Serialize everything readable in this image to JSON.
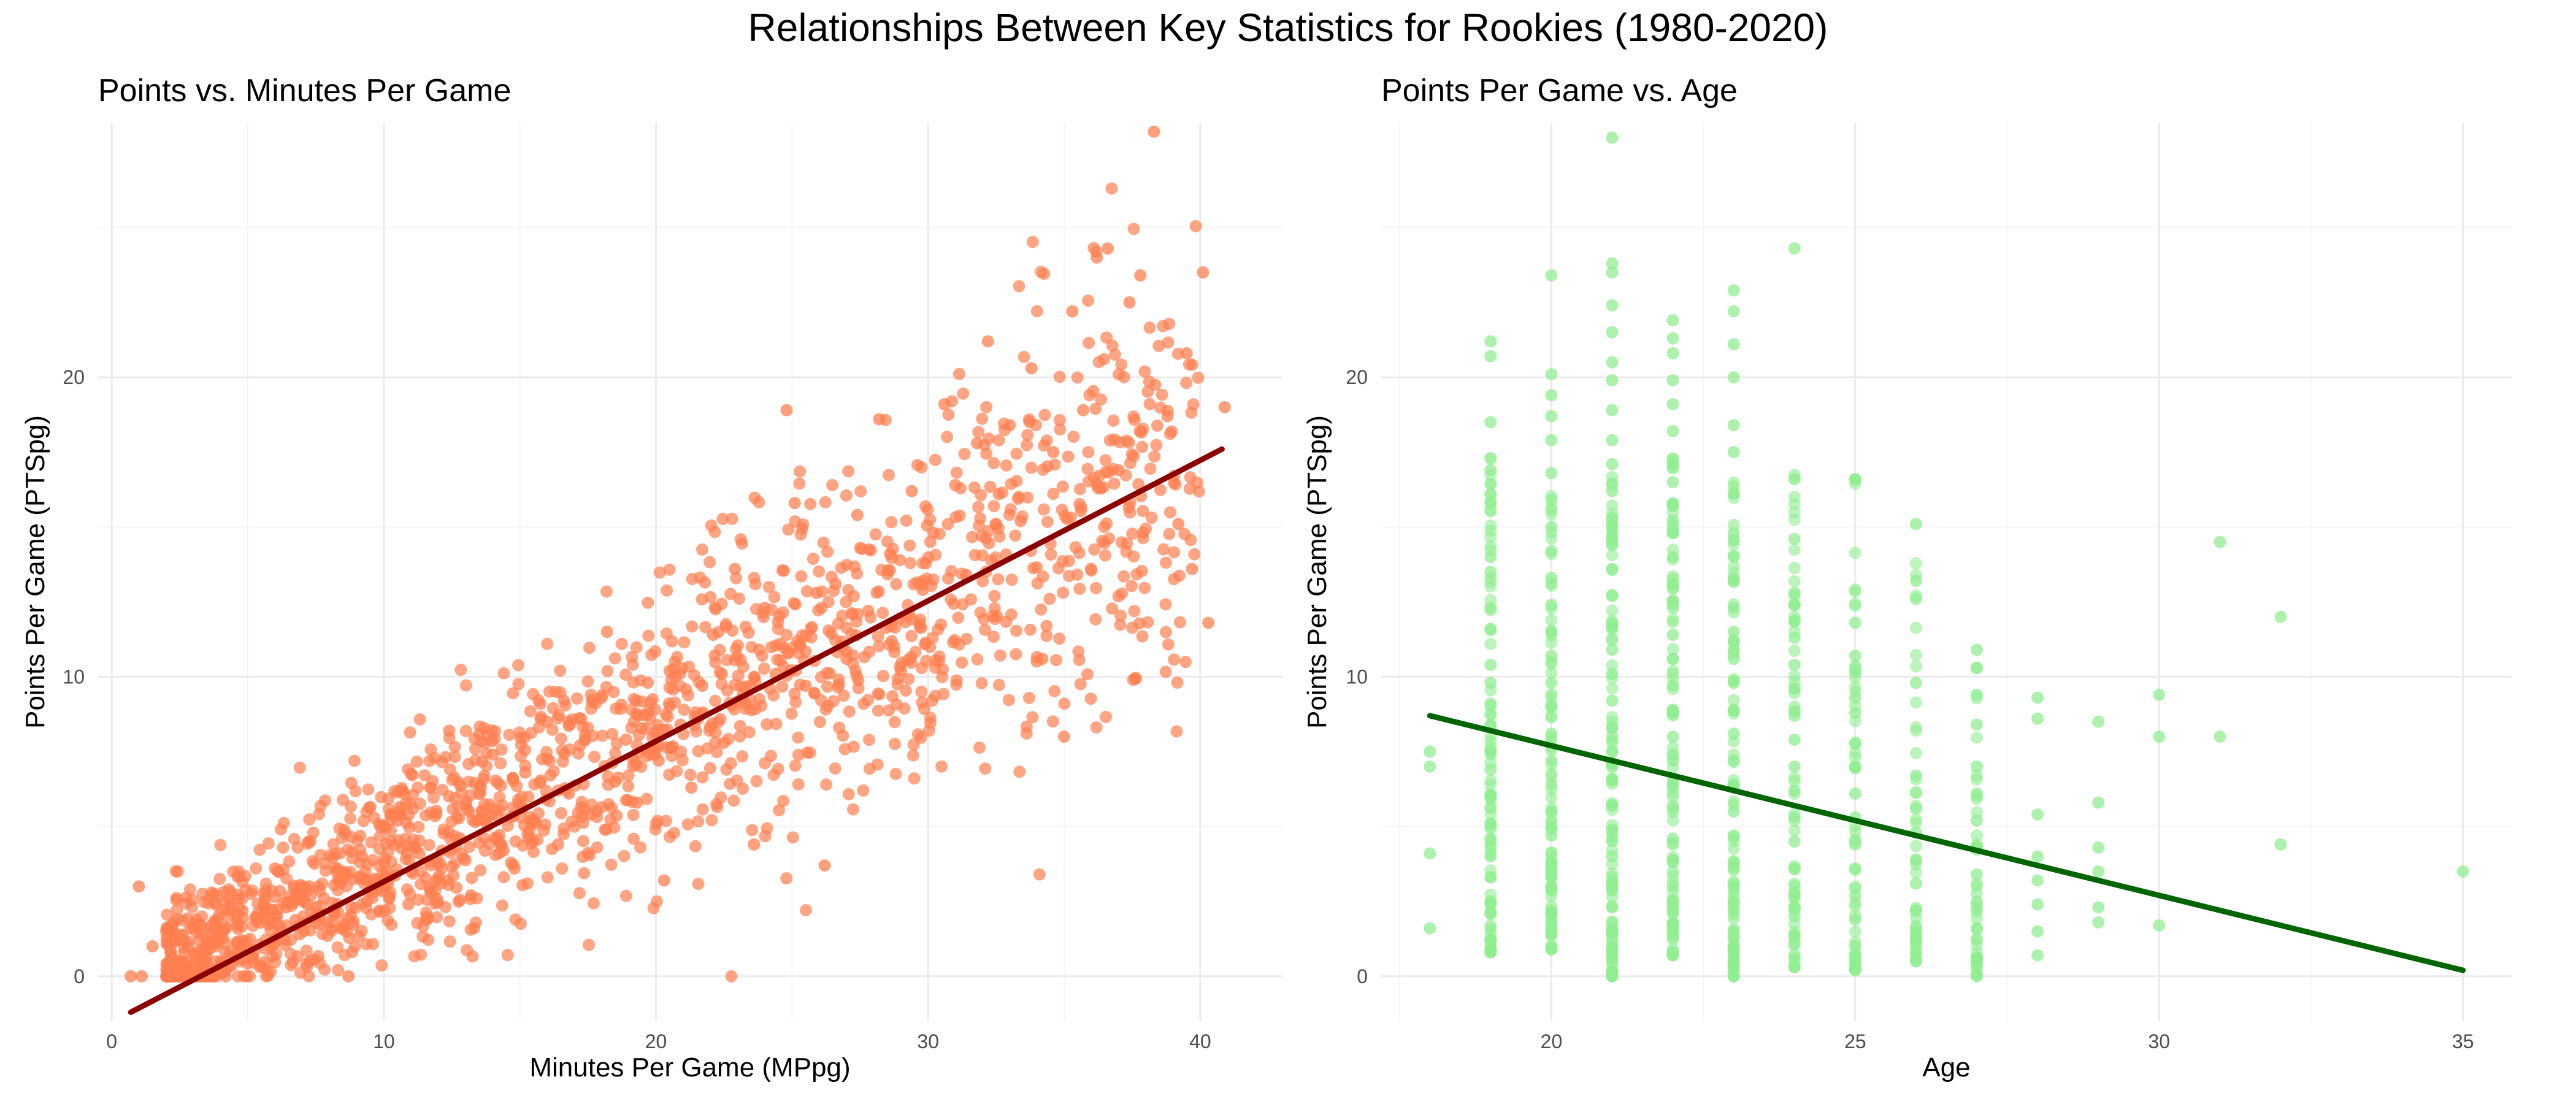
{
  "figure": {
    "title": "Relationships Between Key Statistics for Rookies (1980-2020)"
  },
  "colors": {
    "panel1_points": "#ff7f50",
    "panel1_line": "#8b0000",
    "panel2_points": "#90ee90",
    "panel2_line": "#006400",
    "grid_major": "#ebebeb",
    "grid_minor": "#f5f5f5"
  },
  "chart_data": [
    {
      "type": "scatter",
      "title": "Points vs. Minutes Per Game",
      "xlabel": "Minutes Per Game (MPpg)",
      "ylabel": "Points Per Game (PTSpg)",
      "xlim": [
        -0.5,
        43
      ],
      "ylim": [
        -1.5,
        28.5
      ],
      "x_ticks": [
        0,
        10,
        20,
        30,
        40
      ],
      "y_ticks": [
        0,
        10,
        20
      ],
      "grid": true,
      "legend": "none",
      "trend_line": {
        "x": [
          0.7,
          40.8
        ],
        "y": [
          -1.2,
          17.6
        ]
      },
      "sample_points": [
        [
          0.7,
          0
        ],
        [
          1,
          3
        ],
        [
          1.1,
          0
        ],
        [
          1.5,
          1
        ],
        [
          2,
          1.5
        ],
        [
          2.4,
          1.9
        ],
        [
          2.8,
          0.5
        ],
        [
          3.2,
          1.2
        ],
        [
          3.8,
          1.8
        ],
        [
          4.3,
          2.9
        ],
        [
          4.8,
          2.2
        ],
        [
          5.2,
          0.6
        ],
        [
          5.7,
          1.9
        ],
        [
          6.0,
          3.6
        ],
        [
          6.4,
          2.3
        ],
        [
          6.9,
          1.4
        ],
        [
          7.3,
          4.5
        ],
        [
          7.8,
          2.6
        ],
        [
          8.3,
          3.2
        ],
        [
          8.7,
          0
        ],
        [
          9.2,
          4.0
        ],
        [
          9.6,
          2.8
        ],
        [
          10.1,
          3.5
        ],
        [
          10.5,
          5.2
        ],
        [
          10.9,
          2.4
        ],
        [
          11.3,
          4.1
        ],
        [
          11.7,
          6.3
        ],
        [
          12.1,
          3.1
        ],
        [
          12.4,
          8.2
        ],
        [
          12.8,
          4.6
        ],
        [
          13.2,
          2.7
        ],
        [
          13.6,
          5.5
        ],
        [
          14.0,
          7.4
        ],
        [
          14.4,
          4.2
        ],
        [
          14.8,
          3.6
        ],
        [
          15.2,
          6.8
        ],
        [
          15.6,
          5.1
        ],
        [
          16.0,
          8.5
        ],
        [
          16.4,
          4.4
        ],
        [
          16.8,
          6.1
        ],
        [
          17.2,
          7.7
        ],
        [
          17.6,
          5.4
        ],
        [
          18.0,
          9.3
        ],
        [
          18.2,
          11.5
        ],
        [
          18.5,
          6.5
        ],
        [
          18.9,
          7.9
        ],
        [
          19.3,
          5.8
        ],
        [
          19.7,
          9.8
        ],
        [
          20.1,
          7.2
        ],
        [
          20.3,
          3.2
        ],
        [
          20.5,
          10.2
        ],
        [
          20.9,
          8.4
        ],
        [
          21.3,
          6.3
        ],
        [
          21.7,
          9.7
        ],
        [
          22.1,
          11.4
        ],
        [
          22.5,
          7.8
        ],
        [
          22.9,
          13.6
        ],
        [
          23.3,
          9.1
        ],
        [
          23.6,
          4.4
        ],
        [
          24.0,
          12.3
        ],
        [
          24.4,
          10.1
        ],
        [
          24.8,
          18.9
        ],
        [
          25.1,
          15.8
        ],
        [
          25.5,
          9.7
        ],
        [
          25.9,
          12.8
        ],
        [
          26.2,
          3.7
        ],
        [
          26.6,
          13.1
        ],
        [
          27.0,
          10.6
        ],
        [
          27.4,
          15.4
        ],
        [
          27.8,
          12.2
        ],
        [
          28.2,
          18.6
        ],
        [
          28.6,
          14.1
        ],
        [
          29.0,
          10.2
        ],
        [
          29.4,
          16.2
        ],
        [
          29.8,
          12.9
        ],
        [
          30.2,
          14.8
        ],
        [
          30.6,
          19.1
        ],
        [
          31.0,
          16.4
        ],
        [
          31.4,
          13.4
        ],
        [
          31.8,
          17.8
        ],
        [
          32.2,
          21.2
        ],
        [
          32.6,
          16.1
        ],
        [
          33.0,
          18.4
        ],
        [
          33.4,
          15.2
        ],
        [
          33.8,
          20.3
        ],
        [
          34.2,
          10.6
        ],
        [
          34.6,
          17.5
        ],
        [
          35.0,
          8.0
        ],
        [
          35.3,
          22.2
        ],
        [
          35.7,
          18.9
        ],
        [
          36.2,
          24.0
        ],
        [
          36.6,
          24.3
        ],
        [
          37.0,
          16.9
        ],
        [
          37.4,
          22.5
        ],
        [
          37.8,
          23.4
        ],
        [
          38.3,
          28.2
        ],
        [
          38.8,
          18.7
        ],
        [
          39.2,
          15.1
        ],
        [
          39.5,
          20.8
        ],
        [
          39.7,
          13.6
        ],
        [
          40.1,
          23.5
        ],
        [
          40.3,
          11.8
        ],
        [
          40.9,
          19.0
        ]
      ]
    },
    {
      "type": "scatter",
      "title": "Points Per Game vs. Age",
      "xlabel": "Age",
      "ylabel": "Points Per Game (PTSpg)",
      "xlim": [
        17.2,
        35.8
      ],
      "ylim": [
        -1.5,
        28.5
      ],
      "x_ticks": [
        20,
        25,
        30,
        35
      ],
      "y_ticks": [
        0,
        10,
        20
      ],
      "grid": true,
      "legend": "none",
      "trend_line": {
        "x": [
          18,
          35
        ],
        "y": [
          8.7,
          0.2
        ]
      },
      "age_columns": [
        {
          "age": 18,
          "values": [
            1.6,
            4.1,
            7.0,
            7.5
          ]
        },
        {
          "age": 19,
          "values": [
            0.8,
            1.2,
            2.1,
            2.5,
            3.3,
            4.0,
            4.6,
            5.1,
            6.0,
            6.9,
            7.5,
            8.4,
            9.1,
            9.8,
            10.4,
            11.6,
            12.3,
            13.5,
            14.0,
            15.8,
            16.9,
            18.5,
            20.7,
            21.2
          ]
        },
        {
          "age": 20,
          "values": [
            0.9,
            1.4,
            2.2,
            3.0,
            3.8,
            4.7,
            5.5,
            6.4,
            7.2,
            8.1,
            9.0,
            9.8,
            10.7,
            11.5,
            12.4,
            13.3,
            14.2,
            15.0,
            15.9,
            16.8,
            17.9,
            18.7,
            19.4,
            20.1,
            23.4
          ]
        },
        {
          "age": 21,
          "values": [
            0,
            0.6,
            1.5,
            2.3,
            3.1,
            4.0,
            4.9,
            5.7,
            6.6,
            7.5,
            8.3,
            9.2,
            10.1,
            10.9,
            11.8,
            12.7,
            13.6,
            14.4,
            15.3,
            16.2,
            17.1,
            17.9,
            18.9,
            19.9,
            20.5,
            21.5,
            22.4,
            23.5,
            23.8,
            28.0
          ]
        },
        {
          "age": 22,
          "values": [
            0.7,
            1.3,
            2.1,
            3.0,
            3.8,
            4.6,
            5.5,
            6.3,
            7.2,
            8.0,
            8.9,
            9.7,
            10.6,
            11.4,
            12.3,
            13.1,
            14.0,
            14.8,
            15.7,
            16.5,
            17.1,
            18.2,
            19.1,
            19.9,
            20.8,
            21.3,
            21.9
          ]
        },
        {
          "age": 23,
          "values": [
            0,
            0.5,
            1.3,
            2.2,
            3.0,
            3.8,
            4.7,
            5.5,
            6.4,
            7.2,
            8.1,
            8.9,
            9.8,
            10.6,
            11.5,
            12.3,
            13.2,
            14.0,
            14.8,
            16.1,
            17.5,
            18.4,
            20.0,
            21.1,
            22.2,
            22.9
          ]
        },
        {
          "age": 24,
          "values": [
            0.3,
            1.1,
            2.0,
            2.8,
            3.6,
            4.5,
            5.3,
            6.2,
            7.0,
            7.9,
            8.7,
            9.6,
            10.4,
            11.3,
            12.4,
            12.8,
            14.6,
            24.3
          ]
        },
        {
          "age": 25,
          "values": [
            0.2,
            1.0,
            1.9,
            2.7,
            3.6,
            4.4,
            5.3,
            6.1,
            7.0,
            7.8,
            8.8,
            9.3,
            10.7,
            11.8,
            16.6
          ]
        },
        {
          "age": 26,
          "values": [
            0.5,
            1.4,
            2.2,
            3.1,
            3.9,
            4.8,
            5.6,
            6.7,
            9.8,
            12.6,
            13.2,
            15.1
          ]
        },
        {
          "age": 27,
          "values": [
            0,
            1.6,
            2.5,
            3.4,
            4.3,
            5.2,
            6.1,
            7.0,
            8.4,
            9.4,
            10.3,
            10.9
          ]
        },
        {
          "age": 28,
          "values": [
            0.7,
            1.5,
            2.4,
            3.2,
            4.0,
            5.4,
            8.6,
            9.3
          ]
        },
        {
          "age": 29,
          "values": [
            1.8,
            2.3,
            3.5,
            4.3,
            5.8,
            8.5
          ]
        },
        {
          "age": 30,
          "values": [
            1.7,
            8.0,
            9.4
          ]
        },
        {
          "age": 31,
          "values": [
            8.0,
            14.5
          ]
        },
        {
          "age": 32,
          "values": [
            4.4,
            12.0
          ]
        },
        {
          "age": 35,
          "values": [
            3.5
          ]
        }
      ]
    }
  ]
}
